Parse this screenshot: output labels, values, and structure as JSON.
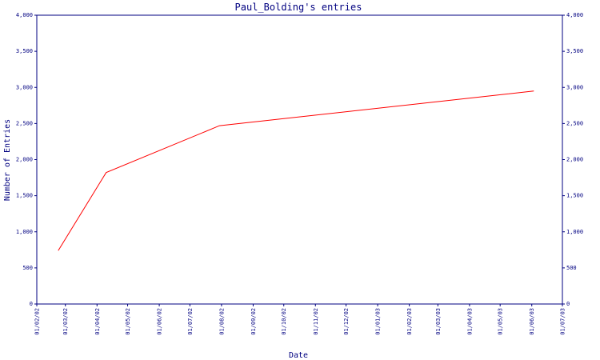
{
  "chart_data": {
    "type": "line",
    "title": "Paul_Bolding's entries",
    "xlabel": "Date",
    "ylabel": "Number of Entries",
    "ylim": [
      0,
      4000
    ],
    "yticks": [
      0,
      500,
      1000,
      1500,
      2000,
      2500,
      3000,
      3500,
      4000
    ],
    "ytick_labels": [
      "0",
      "500",
      "1,000",
      "1,500",
      "2,000",
      "2,500",
      "3,000",
      "3,500",
      "4,000"
    ],
    "xtick_labels": [
      "01/02/02",
      "01/03/02",
      "01/04/02",
      "01/05/02",
      "01/06/02",
      "01/07/02",
      "01/08/02",
      "01/09/02",
      "01/10/02",
      "01/11/02",
      "01/12/02",
      "01/01/03",
      "01/02/03",
      "01/03/03",
      "01/04/03",
      "01/05/03",
      "01/06/03",
      "01/07/03"
    ],
    "grid": false,
    "line_color": "#ff0000",
    "axis_color": "#000080",
    "series": [
      {
        "x": [
          "2002-02-22",
          "2002-04-10",
          "2002-07-30",
          "2003-06-03"
        ],
        "values": [
          740,
          1820,
          2470,
          2950
        ]
      }
    ]
  }
}
